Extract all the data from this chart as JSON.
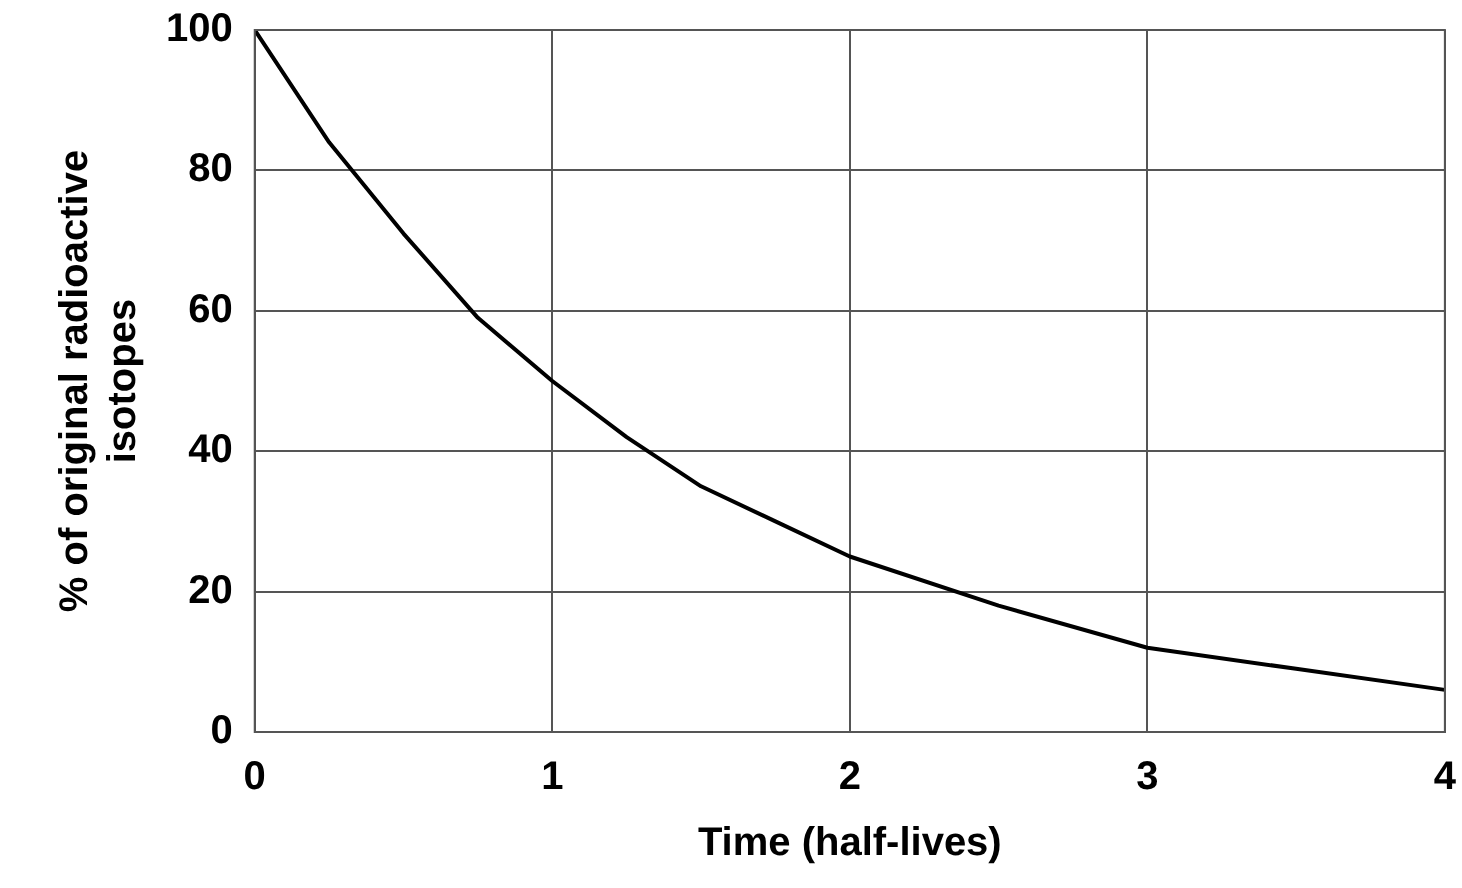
{
  "chart_data": {
    "type": "line",
    "xlabel": "Time (half-lives)",
    "ylabel": "% of original radioactive isotopes",
    "x": [
      0,
      0.25,
      0.5,
      0.75,
      1,
      1.25,
      1.5,
      1.75,
      2,
      2.5,
      3,
      3.5,
      4
    ],
    "series": [
      {
        "color": "#000000",
        "values": [
          100,
          84,
          71,
          59,
          50,
          42,
          35,
          30,
          25,
          18,
          12,
          9,
          6
        ]
      }
    ],
    "xlim": [
      0,
      4
    ],
    "xticks": [
      0,
      1,
      2,
      3,
      4
    ],
    "ylim": [
      0,
      100
    ],
    "yticks": [
      0,
      20,
      40,
      60,
      80,
      100
    ],
    "grid": true,
    "legend": false,
    "marker": "none",
    "line_style": "solid"
  }
}
